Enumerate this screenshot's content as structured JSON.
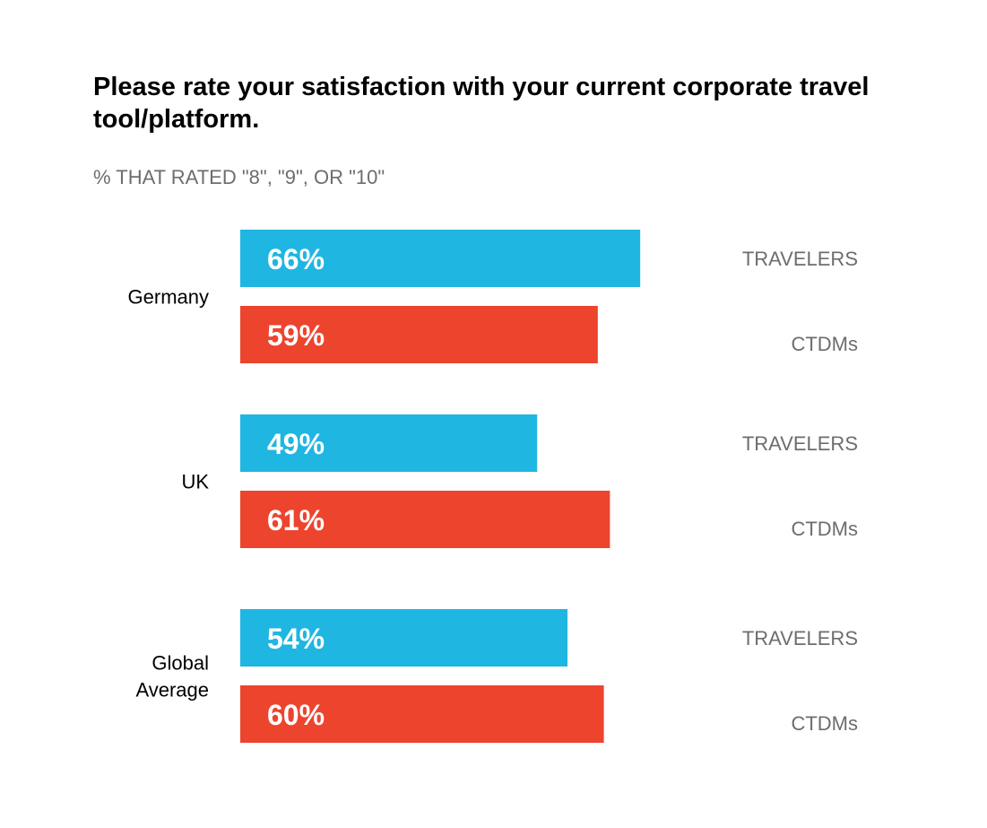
{
  "chart_data": {
    "type": "bar",
    "orientation": "horizontal",
    "title": "Please rate your satisfaction with your current corporate travel tool/platform.",
    "subtitle": "% THAT RATED \"8\", \"9\", OR \"10\"",
    "categories": [
      [
        "Germany"
      ],
      [
        "UK"
      ],
      [
        "Global",
        "Average"
      ]
    ],
    "series": [
      {
        "name": "TRAVELERS",
        "color": "#1fb6e1",
        "values": [
          66,
          49,
          54
        ]
      },
      {
        "name": "CTDMs",
        "color": "#ed442e",
        "values": [
          59,
          61,
          60
        ]
      }
    ],
    "value_suffix": "%",
    "xlim": [
      0,
      100
    ],
    "grid": false,
    "axes_visible": false
  }
}
